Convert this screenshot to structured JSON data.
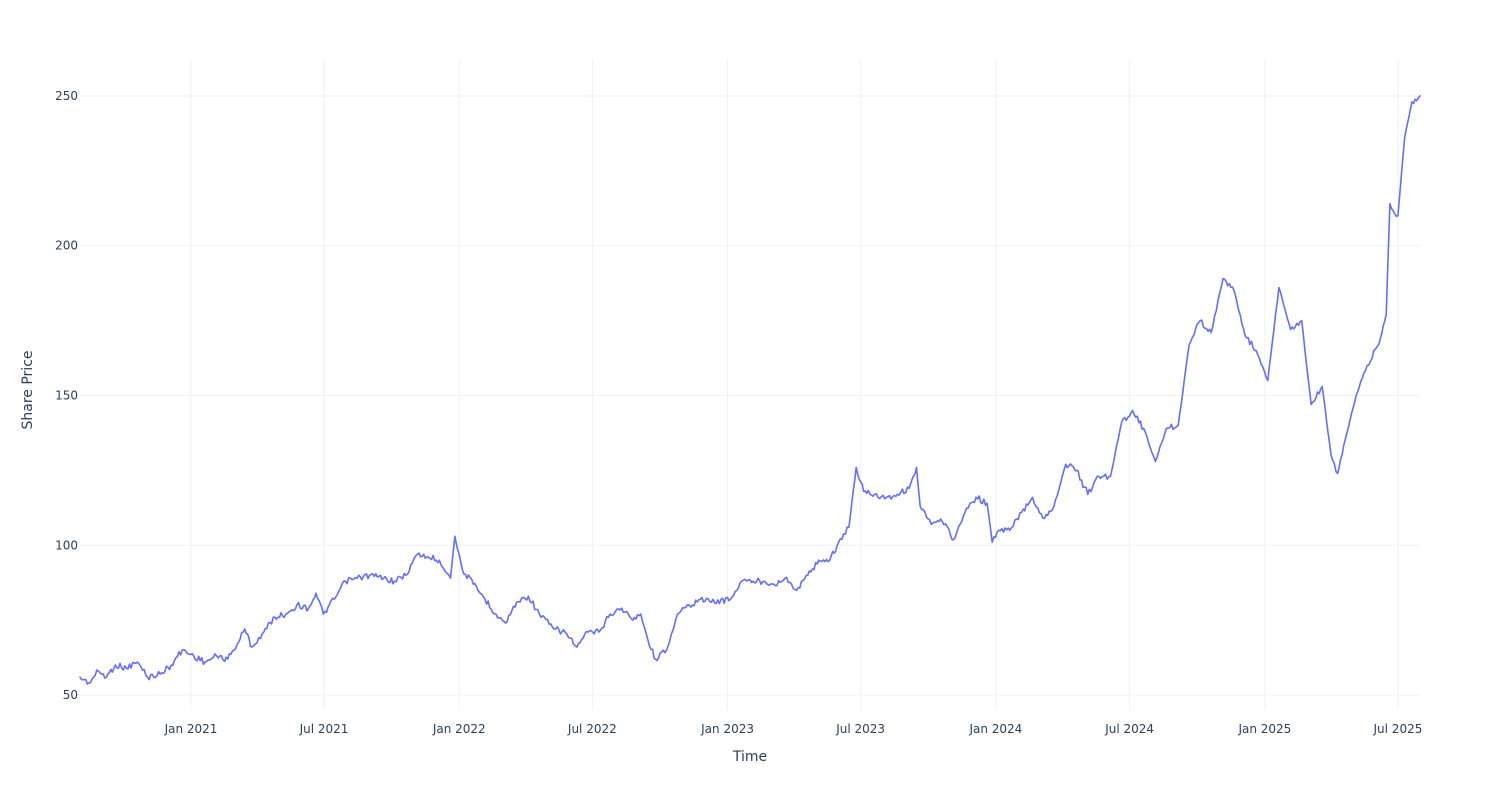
{
  "chart_data": {
    "type": "line",
    "title": "",
    "xlabel": "Time",
    "ylabel": "Share Price",
    "x_range": [
      "2020-08-03",
      "2025-07-31"
    ],
    "ylim": [
      45,
      262
    ],
    "y_ticks": [
      50,
      100,
      150,
      200,
      250
    ],
    "x_ticks": [
      {
        "date": "2021-01-01",
        "label": "Jan 2021"
      },
      {
        "date": "2021-07-01",
        "label": "Jul 2021"
      },
      {
        "date": "2022-01-01",
        "label": "Jan 2022"
      },
      {
        "date": "2022-07-01",
        "label": "Jul 2022"
      },
      {
        "date": "2023-01-01",
        "label": "Jan 2023"
      },
      {
        "date": "2023-07-01",
        "label": "Jul 2023"
      },
      {
        "date": "2024-01-01",
        "label": "Jan 2024"
      },
      {
        "date": "2024-07-01",
        "label": "Jul 2024"
      },
      {
        "date": "2025-01-01",
        "label": "Jan 2025"
      },
      {
        "date": "2025-07-01",
        "label": "Jul 2025"
      }
    ],
    "grid": true,
    "series": [
      {
        "color": "#636efa",
        "points": [
          [
            "2020-08-03",
            56
          ],
          [
            "2020-08-15",
            54
          ],
          [
            "2020-08-28",
            58
          ],
          [
            "2020-09-08",
            56
          ],
          [
            "2020-09-20",
            60
          ],
          [
            "2020-10-05",
            59
          ],
          [
            "2020-10-20",
            61
          ],
          [
            "2020-11-03",
            56
          ],
          [
            "2020-11-20",
            57
          ],
          [
            "2020-12-05",
            60
          ],
          [
            "2020-12-20",
            65
          ],
          [
            "2021-01-05",
            63
          ],
          [
            "2021-01-20",
            61
          ],
          [
            "2021-02-05",
            63
          ],
          [
            "2021-02-20",
            62
          ],
          [
            "2021-03-05",
            67
          ],
          [
            "2021-03-15",
            72
          ],
          [
            "2021-03-25",
            66
          ],
          [
            "2021-04-10",
            71
          ],
          [
            "2021-04-25",
            76
          ],
          [
            "2021-05-10",
            77
          ],
          [
            "2021-05-25",
            80
          ],
          [
            "2021-06-10",
            79
          ],
          [
            "2021-06-20",
            84
          ],
          [
            "2021-06-30",
            77
          ],
          [
            "2021-07-15",
            82
          ],
          [
            "2021-07-30",
            88
          ],
          [
            "2021-08-15",
            89
          ],
          [
            "2021-09-01",
            90
          ],
          [
            "2021-09-20",
            89
          ],
          [
            "2021-10-05",
            88
          ],
          [
            "2021-10-20",
            90
          ],
          [
            "2021-11-05",
            97
          ],
          [
            "2021-11-20",
            96
          ],
          [
            "2021-12-05",
            95
          ],
          [
            "2021-12-20",
            89
          ],
          [
            "2021-12-26",
            103
          ],
          [
            "2022-01-05",
            92
          ],
          [
            "2022-01-20",
            87
          ],
          [
            "2022-02-05",
            82
          ],
          [
            "2022-02-20",
            77
          ],
          [
            "2022-03-05",
            74
          ],
          [
            "2022-03-20",
            81
          ],
          [
            "2022-04-05",
            83
          ],
          [
            "2022-04-20",
            77
          ],
          [
            "2022-05-10",
            72
          ],
          [
            "2022-05-25",
            71
          ],
          [
            "2022-06-10",
            66
          ],
          [
            "2022-06-25",
            71
          ],
          [
            "2022-07-10",
            71
          ],
          [
            "2022-07-25",
            77
          ],
          [
            "2022-08-10",
            79
          ],
          [
            "2022-08-25",
            75
          ],
          [
            "2022-09-05",
            77
          ],
          [
            "2022-09-15",
            68
          ],
          [
            "2022-09-25",
            62
          ],
          [
            "2022-10-10",
            65
          ],
          [
            "2022-10-25",
            77
          ],
          [
            "2022-11-10",
            80
          ],
          [
            "2022-11-25",
            82
          ],
          [
            "2022-12-10",
            81
          ],
          [
            "2023-01-05",
            82
          ],
          [
            "2023-01-20",
            88
          ],
          [
            "2023-02-05",
            88
          ],
          [
            "2023-02-20",
            88
          ],
          [
            "2023-03-05",
            87
          ],
          [
            "2023-03-20",
            89
          ],
          [
            "2023-04-05",
            85
          ],
          [
            "2023-04-20",
            90
          ],
          [
            "2023-05-05",
            95
          ],
          [
            "2023-05-20",
            95
          ],
          [
            "2023-06-01",
            101
          ],
          [
            "2023-06-15",
            106
          ],
          [
            "2023-06-25",
            126
          ],
          [
            "2023-07-05",
            118
          ],
          [
            "2023-07-20",
            117
          ],
          [
            "2023-08-05",
            116
          ],
          [
            "2023-08-20",
            117
          ],
          [
            "2023-09-05",
            119
          ],
          [
            "2023-09-15",
            126
          ],
          [
            "2023-09-20",
            113
          ],
          [
            "2023-10-05",
            107
          ],
          [
            "2023-10-20",
            108
          ],
          [
            "2023-11-05",
            102
          ],
          [
            "2023-11-20",
            111
          ],
          [
            "2023-12-05",
            116
          ],
          [
            "2023-12-20",
            114
          ],
          [
            "2023-12-27",
            101
          ],
          [
            "2024-01-05",
            105
          ],
          [
            "2024-01-20",
            105
          ],
          [
            "2024-02-05",
            111
          ],
          [
            "2024-02-20",
            116
          ],
          [
            "2024-03-05",
            109
          ],
          [
            "2024-03-20",
            113
          ],
          [
            "2024-04-05",
            127
          ],
          [
            "2024-04-20",
            125
          ],
          [
            "2024-05-05",
            117
          ],
          [
            "2024-05-20",
            123
          ],
          [
            "2024-06-05",
            123
          ],
          [
            "2024-06-20",
            141
          ],
          [
            "2024-07-05",
            145
          ],
          [
            "2024-07-20",
            139
          ],
          [
            "2024-08-05",
            128
          ],
          [
            "2024-08-20",
            139
          ],
          [
            "2024-09-05",
            140
          ],
          [
            "2024-09-20",
            167
          ],
          [
            "2024-10-05",
            175
          ],
          [
            "2024-10-20",
            171
          ],
          [
            "2024-11-05",
            189
          ],
          [
            "2024-11-20",
            185
          ],
          [
            "2024-12-05",
            170
          ],
          [
            "2024-12-20",
            165
          ],
          [
            "2025-01-05",
            155
          ],
          [
            "2025-01-20",
            186
          ],
          [
            "2025-02-05",
            172
          ],
          [
            "2025-02-20",
            175
          ],
          [
            "2025-03-05",
            147
          ],
          [
            "2025-03-20",
            153
          ],
          [
            "2025-04-01",
            130
          ],
          [
            "2025-04-10",
            124
          ],
          [
            "2025-04-20",
            135
          ],
          [
            "2025-05-05",
            150
          ],
          [
            "2025-05-20",
            160
          ],
          [
            "2025-06-05",
            167
          ],
          [
            "2025-06-15",
            177
          ],
          [
            "2025-06-20",
            214
          ],
          [
            "2025-07-01",
            210
          ],
          [
            "2025-07-10",
            236
          ],
          [
            "2025-07-20",
            248
          ],
          [
            "2025-07-31",
            250
          ]
        ]
      }
    ]
  }
}
